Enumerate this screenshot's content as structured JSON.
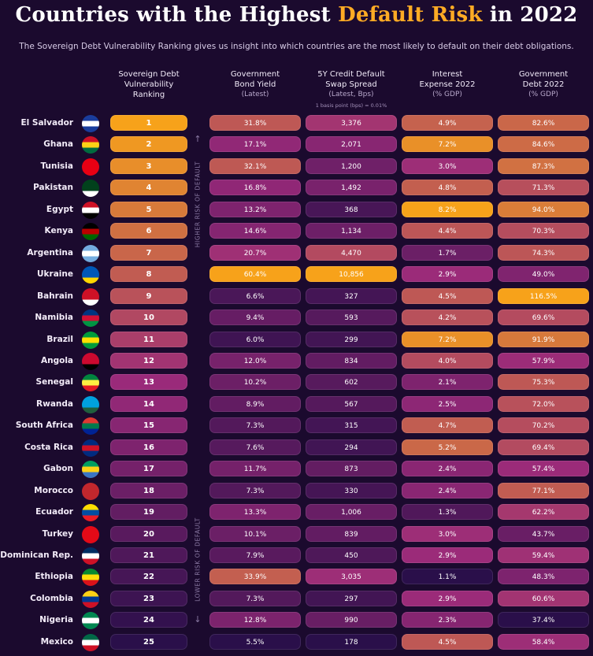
{
  "header": {
    "title_pre": "Countries with the Highest ",
    "title_highlight": "Default Risk",
    "title_post": " in 2022",
    "subtitle": "The Sovereign Debt Vulnerability Ranking gives us insight into which countries are the most likely to default on their debt obligations."
  },
  "columns": {
    "ranking": {
      "line1": "Sovereign Debt",
      "line2": "Vulnerability",
      "line3": "Ranking"
    },
    "bond_yield": {
      "line1": "Government",
      "line2": "Bond Yield",
      "sub": "(Latest)"
    },
    "cds": {
      "line1": "5Y Credit Default",
      "line2": "Swap Spread",
      "sub": "(Latest, Bps)"
    },
    "interest": {
      "line1": "Interest",
      "line2": "Expense 2022",
      "sub": "(% GDP)"
    },
    "debt": {
      "line1": "Government",
      "line2": "Debt 2022",
      "sub": "(% GDP)"
    }
  },
  "basis_note": "1 basis point (bps) = 0.01%",
  "side_labels": {
    "higher": "HIGHER RISK OF DEFAULT",
    "lower": "LOWER RISK OF DEFAULT"
  },
  "colors": {
    "background": "#1b0a2e",
    "accent": "#ffab24",
    "scale_low": "#2a0f4a",
    "scale_mid": "#9a2a7a",
    "scale_high": "#f7a21a"
  },
  "chart_data": {
    "type": "table",
    "title": "Countries with the Highest Default Risk in 2022",
    "columns": [
      "Sovereign Debt Vulnerability Ranking",
      "Government Bond Yield (Latest)",
      "5Y Credit Default Swap Spread (Latest, Bps)",
      "Interest Expense 2022 (% GDP)",
      "Government Debt 2022 (% GDP)"
    ],
    "rows": [
      {
        "country": "El Salvador",
        "rank": 1,
        "bond_yield": "31.8%",
        "cds": "3,376",
        "interest": "4.9%",
        "debt": "82.6%"
      },
      {
        "country": "Ghana",
        "rank": 2,
        "bond_yield": "17.1%",
        "cds": "2,071",
        "interest": "7.2%",
        "debt": "84.6%"
      },
      {
        "country": "Tunisia",
        "rank": 3,
        "bond_yield": "32.1%",
        "cds": "1,200",
        "interest": "3.0%",
        "debt": "87.3%"
      },
      {
        "country": "Pakistan",
        "rank": 4,
        "bond_yield": "16.8%",
        "cds": "1,492",
        "interest": "4.8%",
        "debt": "71.3%"
      },
      {
        "country": "Egypt",
        "rank": 5,
        "bond_yield": "13.2%",
        "cds": "368",
        "interest": "8.2%",
        "debt": "94.0%"
      },
      {
        "country": "Kenya",
        "rank": 6,
        "bond_yield": "14.6%",
        "cds": "1,134",
        "interest": "4.4%",
        "debt": "70.3%"
      },
      {
        "country": "Argentina",
        "rank": 7,
        "bond_yield": "20.7%",
        "cds": "4,470",
        "interest": "1.7%",
        "debt": "74.3%"
      },
      {
        "country": "Ukraine",
        "rank": 8,
        "bond_yield": "60.4%",
        "cds": "10,856",
        "interest": "2.9%",
        "debt": "49.0%"
      },
      {
        "country": "Bahrain",
        "rank": 9,
        "bond_yield": "6.6%",
        "cds": "327",
        "interest": "4.5%",
        "debt": "116.5%"
      },
      {
        "country": "Namibia",
        "rank": 10,
        "bond_yield": "9.4%",
        "cds": "593",
        "interest": "4.2%",
        "debt": "69.6%"
      },
      {
        "country": "Brazil",
        "rank": 11,
        "bond_yield": "6.0%",
        "cds": "299",
        "interest": "7.2%",
        "debt": "91.9%"
      },
      {
        "country": "Angola",
        "rank": 12,
        "bond_yield": "12.0%",
        "cds": "834",
        "interest": "4.0%",
        "debt": "57.9%"
      },
      {
        "country": "Senegal",
        "rank": 13,
        "bond_yield": "10.2%",
        "cds": "602",
        "interest": "2.1%",
        "debt": "75.3%"
      },
      {
        "country": "Rwanda",
        "rank": 14,
        "bond_yield": "8.9%",
        "cds": "567",
        "interest": "2.5%",
        "debt": "72.0%"
      },
      {
        "country": "South Africa",
        "rank": 15,
        "bond_yield": "7.3%",
        "cds": "315",
        "interest": "4.7%",
        "debt": "70.2%"
      },
      {
        "country": "Costa Rica",
        "rank": 16,
        "bond_yield": "7.6%",
        "cds": "294",
        "interest": "5.2%",
        "debt": "69.4%"
      },
      {
        "country": "Gabon",
        "rank": 17,
        "bond_yield": "11.7%",
        "cds": "873",
        "interest": "2.4%",
        "debt": "57.4%"
      },
      {
        "country": "Morocco",
        "rank": 18,
        "bond_yield": "7.3%",
        "cds": "330",
        "interest": "2.4%",
        "debt": "77.1%"
      },
      {
        "country": "Ecuador",
        "rank": 19,
        "bond_yield": "13.3%",
        "cds": "1,006",
        "interest": "1.3%",
        "debt": "62.2%"
      },
      {
        "country": "Turkey",
        "rank": 20,
        "bond_yield": "10.1%",
        "cds": "839",
        "interest": "3.0%",
        "debt": "43.7%"
      },
      {
        "country": "Dominican Rep.",
        "rank": 21,
        "bond_yield": "7.9%",
        "cds": "450",
        "interest": "2.9%",
        "debt": "59.4%"
      },
      {
        "country": "Ethiopia",
        "rank": 22,
        "bond_yield": "33.9%",
        "cds": "3,035",
        "interest": "1.1%",
        "debt": "48.3%"
      },
      {
        "country": "Colombia",
        "rank": 23,
        "bond_yield": "7.3%",
        "cds": "297",
        "interest": "2.9%",
        "debt": "60.6%"
      },
      {
        "country": "Nigeria",
        "rank": 24,
        "bond_yield": "12.8%",
        "cds": "990",
        "interest": "2.3%",
        "debt": "37.4%"
      },
      {
        "country": "Mexico",
        "rank": 25,
        "bond_yield": "5.5%",
        "cds": "178",
        "interest": "4.5%",
        "debt": "58.4%"
      }
    ],
    "flag_icons": [
      "el-salvador-flag-icon",
      "ghana-flag-icon",
      "tunisia-flag-icon",
      "pakistan-flag-icon",
      "egypt-flag-icon",
      "kenya-flag-icon",
      "argentina-flag-icon",
      "ukraine-flag-icon",
      "bahrain-flag-icon",
      "namibia-flag-icon",
      "brazil-flag-icon",
      "angola-flag-icon",
      "senegal-flag-icon",
      "rwanda-flag-icon",
      "south-africa-flag-icon",
      "costa-rica-flag-icon",
      "gabon-flag-icon",
      "morocco-flag-icon",
      "ecuador-flag-icon",
      "turkey-flag-icon",
      "dominican-rep-flag-icon",
      "ethiopia-flag-icon",
      "colombia-flag-icon",
      "nigeria-flag-icon",
      "mexico-flag-icon"
    ],
    "flag_colors": [
      [
        "#1a3d9c",
        "#ffffff",
        "#1a3d9c"
      ],
      [
        "#ce1126",
        "#fcd116",
        "#006b3f"
      ],
      [
        "#e70013",
        "#e70013",
        "#e70013"
      ],
      [
        "#01411c",
        "#01411c",
        "#ffffff"
      ],
      [
        "#ce1126",
        "#ffffff",
        "#000000"
      ],
      [
        "#000000",
        "#bb0000",
        "#006600"
      ],
      [
        "#74acdf",
        "#ffffff",
        "#74acdf"
      ],
      [
        "#0057b7",
        "#0057b7",
        "#ffd700"
      ],
      [
        "#ce1126",
        "#ce1126",
        "#ffffff"
      ],
      [
        "#003580",
        "#d21034",
        "#009543"
      ],
      [
        "#009c3b",
        "#ffdf00",
        "#009c3b"
      ],
      [
        "#cc092f",
        "#cc092f",
        "#000000"
      ],
      [
        "#00853f",
        "#fdef42",
        "#e31b23"
      ],
      [
        "#00a1de",
        "#00a1de",
        "#20603d"
      ],
      [
        "#de3831",
        "#007a4d",
        "#002395"
      ],
      [
        "#002b7f",
        "#ce1126",
        "#002b7f"
      ],
      [
        "#009e60",
        "#fcd116",
        "#3a75c4"
      ],
      [
        "#c1272d",
        "#c1272d",
        "#c1272d"
      ],
      [
        "#ffdd00",
        "#034ea2",
        "#ed1c24"
      ],
      [
        "#e30a17",
        "#e30a17",
        "#e30a17"
      ],
      [
        "#002d62",
        "#ffffff",
        "#ce1126"
      ],
      [
        "#078930",
        "#fcdd09",
        "#da121a"
      ],
      [
        "#fcd116",
        "#003893",
        "#ce1126"
      ],
      [
        "#008751",
        "#ffffff",
        "#008751"
      ],
      [
        "#006847",
        "#ffffff",
        "#ce1126"
      ]
    ]
  }
}
